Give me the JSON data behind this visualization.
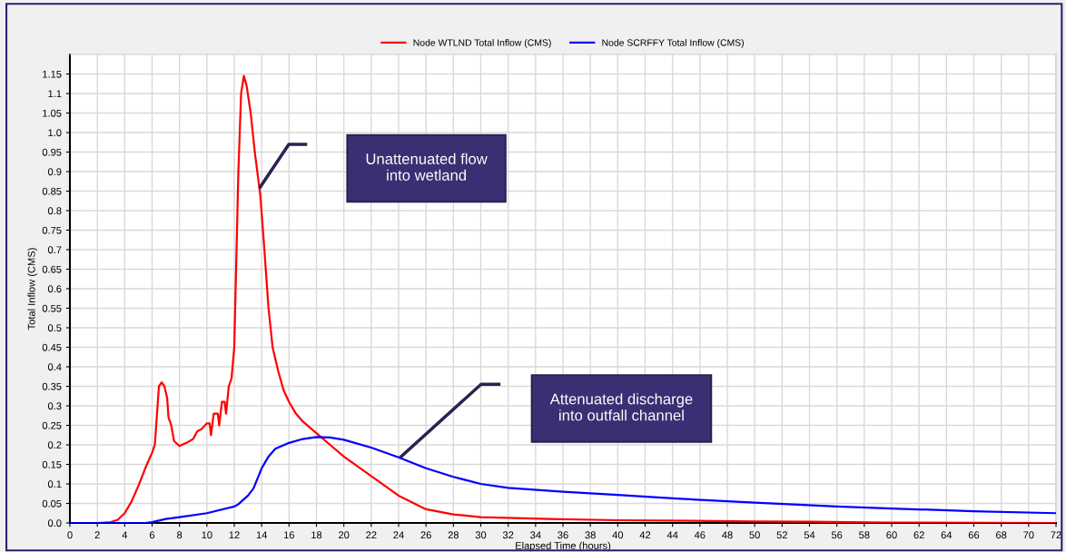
{
  "chart_data": {
    "type": "line",
    "xlabel": "Elapsed Time (hours)",
    "ylabel": "Total Inflow (CMS)",
    "xlim": [
      0,
      72
    ],
    "xticks": [
      0,
      2,
      4,
      6,
      8,
      10,
      12,
      14,
      16,
      18,
      20,
      22,
      24,
      26,
      28,
      30,
      32,
      34,
      36,
      38,
      40,
      42,
      44,
      46,
      48,
      50,
      52,
      54,
      56,
      58,
      60,
      62,
      64,
      66,
      68,
      70,
      72
    ],
    "ylim": [
      0,
      1.2
    ],
    "yticks": [
      {
        "value": 0,
        "label": "0.0"
      },
      0.05,
      0.1,
      0.15,
      0.2,
      0.25,
      0.3,
      0.35,
      0.4,
      0.45,
      0.5,
      0.55,
      0.6,
      0.65,
      0.7,
      0.75,
      0.8,
      0.85,
      0.9,
      0.95,
      {
        "value": 1,
        "label": "1.0"
      },
      1.05,
      1.1,
      1.15
    ],
    "grid": true,
    "legend": "top",
    "marker": "none",
    "line_style": "solid",
    "series": [
      {
        "name": "Node WTLND Total Inflow (CMS)",
        "color": "#ff0000",
        "x": [
          0,
          2,
          3,
          3.5,
          4,
          4.5,
          5,
          5.5,
          6,
          6.2,
          6.4,
          6.5,
          6.7,
          6.9,
          7.1,
          7.2,
          7.4,
          7.6,
          8,
          8.5,
          9,
          9.3,
          9.6,
          10,
          10.2,
          10.3,
          10.5,
          10.8,
          10.9,
          11.1,
          11.3,
          11.4,
          11.6,
          11.8,
          12,
          12.1,
          12.3,
          12.5,
          12.7,
          12.9,
          13.2,
          13.5,
          13.9,
          14.2,
          14.5,
          14.8,
          15.2,
          15.6,
          16,
          16.5,
          17,
          18,
          19,
          20,
          22,
          24,
          26,
          28,
          30,
          35,
          40,
          50,
          54,
          60,
          72
        ],
        "values": [
          0,
          0,
          0.002,
          0.008,
          0.025,
          0.055,
          0.095,
          0.14,
          0.18,
          0.2,
          0.3,
          0.35,
          0.36,
          0.35,
          0.32,
          0.27,
          0.25,
          0.21,
          0.197,
          0.205,
          0.215,
          0.235,
          0.24,
          0.255,
          0.255,
          0.225,
          0.28,
          0.28,
          0.25,
          0.31,
          0.31,
          0.28,
          0.35,
          0.37,
          0.45,
          0.6,
          0.9,
          1.1,
          1.145,
          1.12,
          1.05,
          0.95,
          0.84,
          0.7,
          0.55,
          0.45,
          0.39,
          0.34,
          0.31,
          0.28,
          0.26,
          0.23,
          0.2,
          0.17,
          0.12,
          0.07,
          0.035,
          0.022,
          0.015,
          0.01,
          0.007,
          0.004,
          0.003,
          0.001,
          0
        ]
      },
      {
        "name": "Node SCRFFY Total Inflow (CMS)",
        "color": "#0000ff",
        "x": [
          0,
          5.5,
          6,
          7,
          8,
          10,
          12,
          12.3,
          13,
          13.4,
          14,
          14.5,
          15,
          16,
          17,
          18,
          19,
          20,
          22,
          24,
          26,
          28,
          30,
          32,
          36,
          40,
          44,
          50,
          56,
          60,
          66,
          72
        ],
        "values": [
          0,
          0,
          0.002,
          0.01,
          0.015,
          0.025,
          0.042,
          0.048,
          0.07,
          0.088,
          0.14,
          0.17,
          0.19,
          0.205,
          0.215,
          0.22,
          0.219,
          0.213,
          0.193,
          0.168,
          0.14,
          0.118,
          0.1,
          0.09,
          0.08,
          0.072,
          0.063,
          0.052,
          0.042,
          0.037,
          0.03,
          0.025
        ]
      }
    ],
    "annotations": [
      "Unattenuated flow\ninto wetland",
      "Attenuated discharge\ninto outfall channel"
    ]
  }
}
